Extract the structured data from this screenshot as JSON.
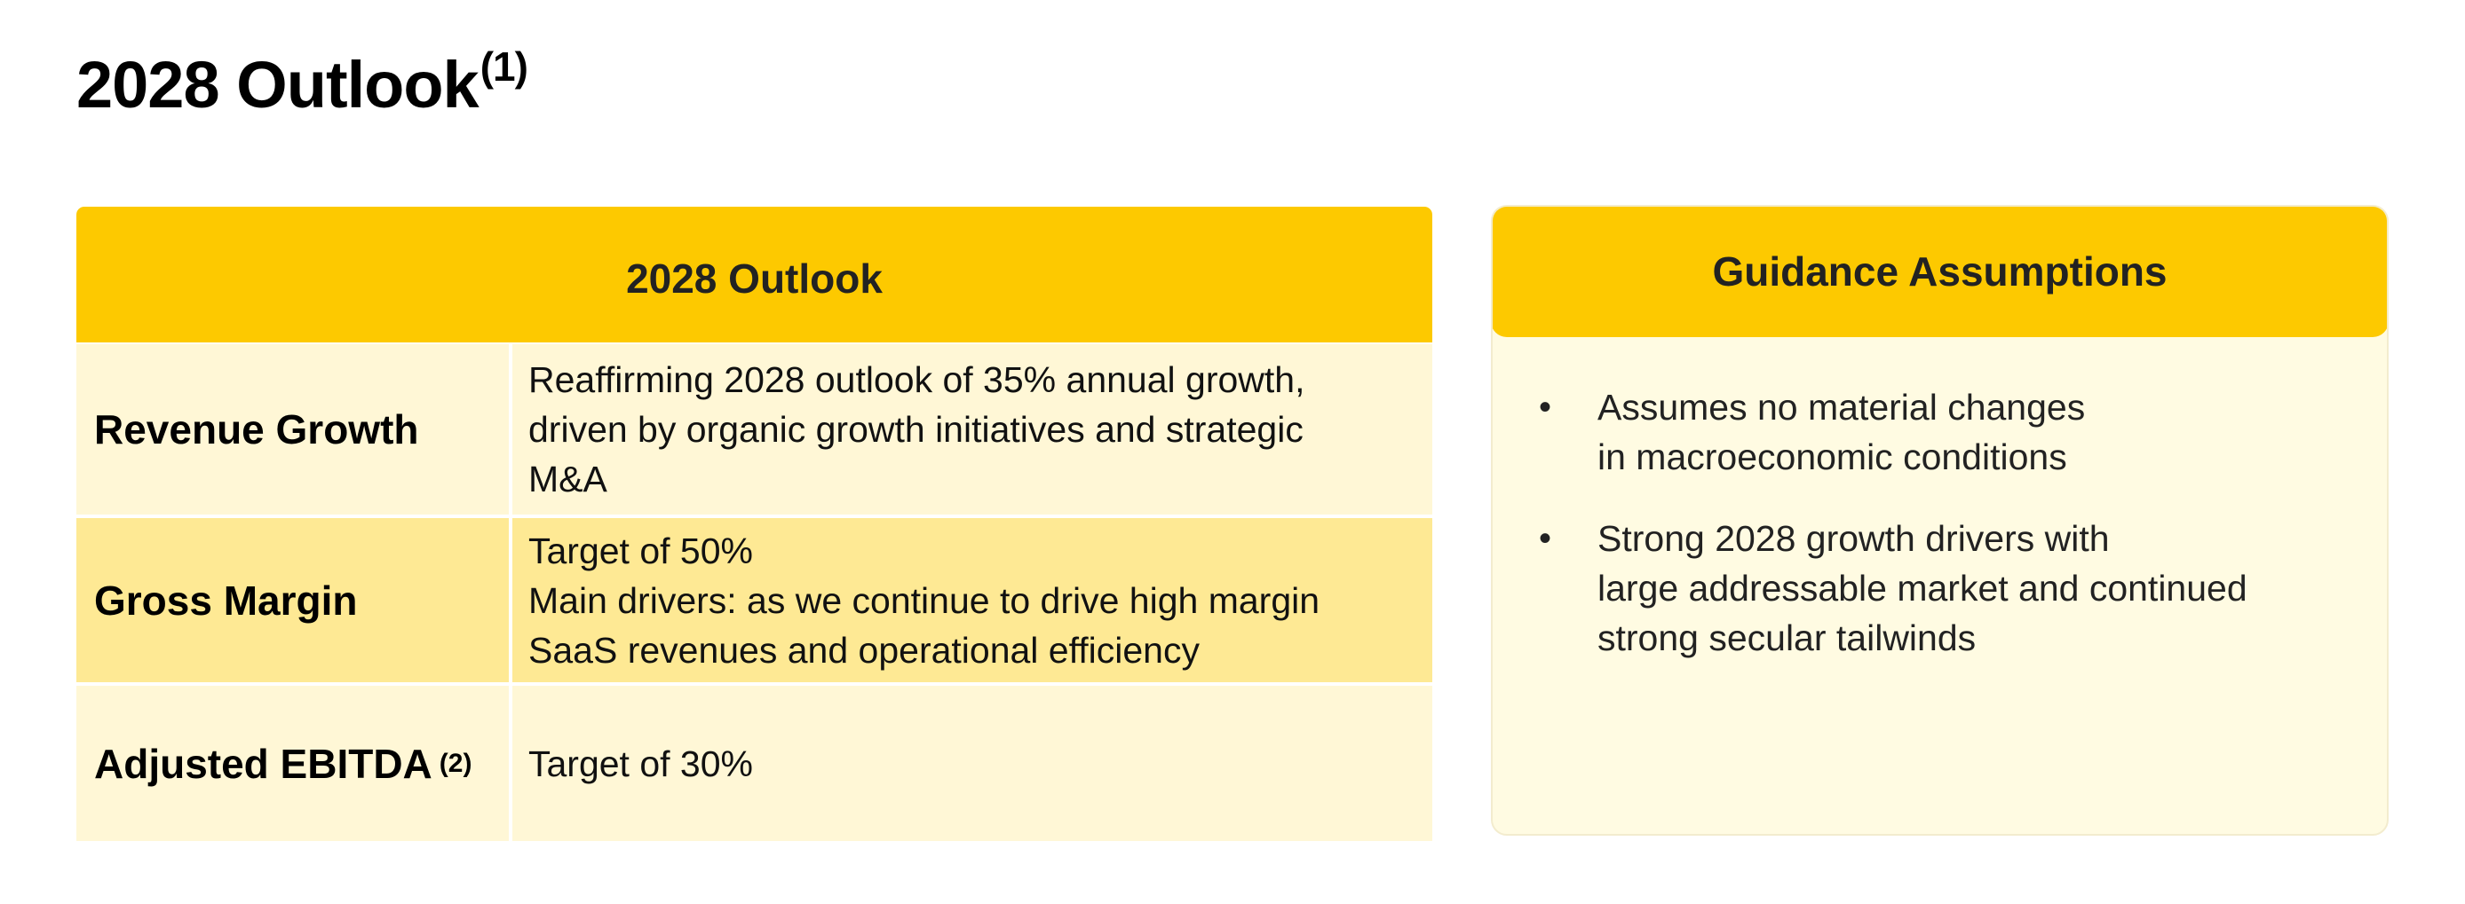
{
  "page": {
    "title": "2028 Outlook",
    "title_footnote": "(1)"
  },
  "outlook_table": {
    "header": "2028 Outlook",
    "rows": [
      {
        "label": "Revenue Growth",
        "footnote": "",
        "lines": [
          "Reaffirming 2028 outlook of 35% annual growth,",
          "driven by organic growth initiatives and strategic",
          "M&A"
        ]
      },
      {
        "label": "Gross Margin",
        "footnote": "",
        "lines": [
          "Target of 50%",
          "Main drivers: as we continue to drive high margin",
          "SaaS revenues and operational efficiency"
        ]
      },
      {
        "label": "Adjusted EBITDA",
        "footnote": "(2)",
        "lines": [
          "Target of 30%"
        ]
      }
    ]
  },
  "guidance": {
    "header": "Guidance Assumptions",
    "bullet_glyph": "•",
    "bullets": [
      {
        "lines": [
          "Assumes no material changes",
          "in macroeconomic conditions"
        ]
      },
      {
        "lines": [
          "Strong 2028 growth drivers with",
          "large addressable market and continued",
          "strong secular tailwinds"
        ]
      }
    ]
  },
  "colors": {
    "header_yellow": "#fdc900",
    "row_light": "#fff7d6",
    "row_dark": "#fee994",
    "card_bg": "#fffbe2"
  }
}
